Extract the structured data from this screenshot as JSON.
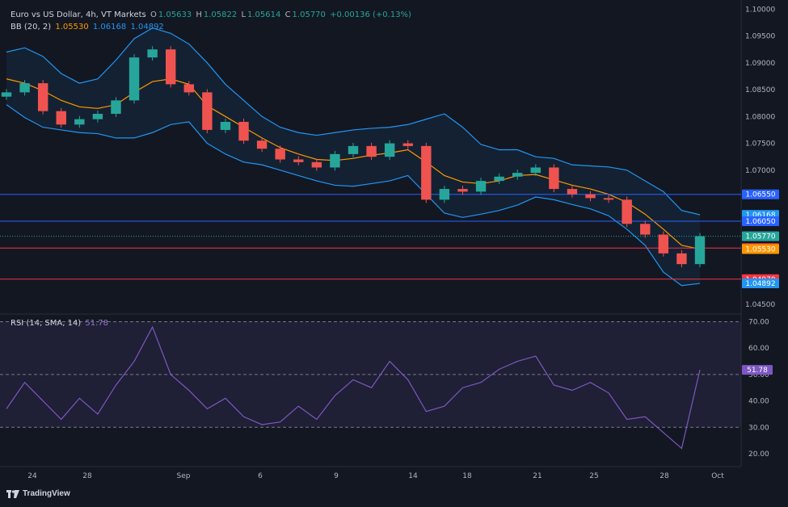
{
  "legend": {
    "symbol": "Euro vs US Dollar, 4h, VT Markets",
    "open_label": "O",
    "open": "1.05633",
    "high_label": "H",
    "high": "1.05822",
    "low_label": "L",
    "low": "1.05614",
    "close_label": "C",
    "close": "1.05770",
    "change": "+0.00136 (+0.13%)",
    "bb_label": "BB (20, 2)",
    "bb_basis": "1.05530",
    "bb_upper": "1.06168",
    "bb_lower": "1.04892",
    "rsi_label": "RSI (14, SMA, 14)",
    "rsi_value": "51.78"
  },
  "branding": {
    "logo_text": "TradingView"
  },
  "colors": {
    "background": "#131722",
    "up": "#26a69a",
    "down": "#ef5350",
    "bb_basis": "#ff9800",
    "bb_band": "#2196f3",
    "rsi": "#7e57c2",
    "support_blue": "#2962ff",
    "support_red": "#f23645"
  },
  "chart_data": [
    {
      "type": "candlestick",
      "title": "Euro vs US Dollar, 4h, VT Markets",
      "y_axis": {
        "ticks": [
          "1.10000",
          "1.09500",
          "1.09000",
          "1.08500",
          "1.08000",
          "1.07500",
          "1.07000",
          "1.04500"
        ],
        "range": [
          1.0438,
          1.1005
        ]
      },
      "x_axis": {
        "ticks": [
          "24",
          "28",
          "Sep",
          "6",
          "9",
          "14",
          "18",
          "21",
          "25",
          "28",
          "Oct"
        ],
        "range": [
          "Aug 22",
          "Oct 1"
        ]
      },
      "horizontal_levels": [
        {
          "label": "1.06550",
          "color": "#2962ff"
        },
        {
          "label": "1.06050",
          "color": "#2962ff"
        },
        {
          "label": "1.05550",
          "color": "#f23645"
        },
        {
          "label": "1.04970",
          "color": "#f23645"
        }
      ],
      "price_badges": [
        {
          "label": "1.06550",
          "color": "#2962ff"
        },
        {
          "label": "1.06168",
          "color": "#2196f3"
        },
        {
          "label": "1.06050",
          "color": "#2962ff"
        },
        {
          "label": "1.05770",
          "color": "#26a69a"
        },
        {
          "label": "1.05550",
          "color": "#f23645"
        },
        {
          "label": "1.05530",
          "color": "#ff9800"
        },
        {
          "label": "1.04970",
          "color": "#f23645"
        },
        {
          "label": "1.04892",
          "color": "#2196f3"
        }
      ],
      "candles": {
        "x": [
          "Aug 22",
          "Aug 23",
          "Aug 24",
          "Aug 25",
          "Aug 26",
          "Aug 27",
          "Aug 28",
          "Aug 29",
          "Aug 30",
          "Aug 31",
          "Sep 1",
          "Sep 2",
          "Sep 3",
          "Sep 4",
          "Sep 5",
          "Sep 6",
          "Sep 7",
          "Sep 8",
          "Sep 9",
          "Sep 10",
          "Sep 11",
          "Sep 12",
          "Sep 13",
          "Sep 14",
          "Sep 15",
          "Sep 16",
          "Sep 17",
          "Sep 18",
          "Sep 19",
          "Sep 20",
          "Sep 21",
          "Sep 22",
          "Sep 23",
          "Sep 24",
          "Sep 25",
          "Sep 26",
          "Sep 27",
          "Sep 28",
          "Sep 29"
        ],
        "close": [
          1.0845,
          1.0862,
          1.081,
          1.0785,
          1.0795,
          1.0805,
          1.083,
          1.091,
          1.0925,
          1.086,
          1.0845,
          1.0775,
          1.079,
          1.0755,
          1.074,
          1.072,
          1.0715,
          1.0705,
          1.073,
          1.0745,
          1.0725,
          1.075,
          1.0745,
          1.0645,
          1.0665,
          1.066,
          1.068,
          1.0688,
          1.0695,
          1.0705,
          1.0665,
          1.0655,
          1.0648,
          1.0645,
          1.06,
          1.058,
          1.0545,
          1.0525,
          1.0577
        ]
      },
      "bollinger": {
        "basis": [
          1.087,
          1.0862,
          1.0848,
          1.083,
          1.0818,
          1.0815,
          1.0822,
          1.0845,
          1.0865,
          1.087,
          1.086,
          1.082,
          1.08,
          1.078,
          1.076,
          1.0742,
          1.073,
          1.072,
          1.0718,
          1.0722,
          1.0728,
          1.0732,
          1.0738,
          1.0715,
          1.069,
          1.0678,
          1.0675,
          1.068,
          1.069,
          1.0692,
          1.0682,
          1.0672,
          1.0665,
          1.0655,
          1.064,
          1.0618,
          1.059,
          1.056,
          1.0553
        ],
        "upper": [
          1.092,
          1.0928,
          1.0912,
          1.088,
          1.0862,
          1.087,
          1.0905,
          1.0945,
          1.0965,
          1.0955,
          1.0935,
          1.09,
          1.086,
          1.083,
          1.08,
          1.078,
          1.077,
          1.0765,
          1.077,
          1.0775,
          1.0778,
          1.078,
          1.0785,
          1.0795,
          1.0805,
          1.078,
          1.0748,
          1.0738,
          1.0738,
          1.0725,
          1.0722,
          1.071,
          1.0708,
          1.0706,
          1.07,
          1.068,
          1.066,
          1.0625,
          1.0617
        ],
        "lower": [
          1.0822,
          1.0798,
          1.078,
          1.0775,
          1.077,
          1.0768,
          1.076,
          1.076,
          1.077,
          1.0785,
          1.079,
          1.075,
          1.073,
          1.0715,
          1.071,
          1.07,
          1.069,
          1.068,
          1.0672,
          1.067,
          1.0675,
          1.068,
          1.069,
          1.0655,
          1.062,
          1.0612,
          1.0618,
          1.0625,
          1.0635,
          1.065,
          1.0645,
          1.0636,
          1.0628,
          1.0615,
          1.059,
          1.056,
          1.051,
          1.0485,
          1.0489
        ]
      }
    },
    {
      "type": "line",
      "title": "RSI (14, SMA, 14)",
      "y_axis": {
        "ticks": [
          "70.00",
          "60.00",
          "50.00",
          "40.00",
          "30.00",
          "20.00"
        ],
        "range": [
          16,
          72
        ],
        "reference_lines": [
          70,
          50,
          30
        ]
      },
      "series": [
        {
          "name": "RSI",
          "x": [
            "Aug 22",
            "Aug 23",
            "Aug 24",
            "Aug 25",
            "Aug 26",
            "Aug 27",
            "Aug 28",
            "Aug 29",
            "Aug 30",
            "Aug 31",
            "Sep 1",
            "Sep 2",
            "Sep 3",
            "Sep 4",
            "Sep 5",
            "Sep 6",
            "Sep 7",
            "Sep 8",
            "Sep 9",
            "Sep 10",
            "Sep 11",
            "Sep 12",
            "Sep 13",
            "Sep 14",
            "Sep 15",
            "Sep 16",
            "Sep 17",
            "Sep 18",
            "Sep 19",
            "Sep 20",
            "Sep 21",
            "Sep 22",
            "Sep 23",
            "Sep 24",
            "Sep 25",
            "Sep 26",
            "Sep 27",
            "Sep 28",
            "Sep 29"
          ],
          "values": [
            37,
            47,
            40,
            33,
            41,
            35,
            46,
            55,
            68,
            50,
            44,
            37,
            41,
            34,
            31,
            32,
            38,
            33,
            42,
            48,
            45,
            55,
            48,
            36,
            38,
            45,
            47,
            52,
            55,
            57,
            46,
            44,
            47,
            43,
            33,
            34,
            28,
            22,
            51.78
          ]
        }
      ]
    }
  ]
}
